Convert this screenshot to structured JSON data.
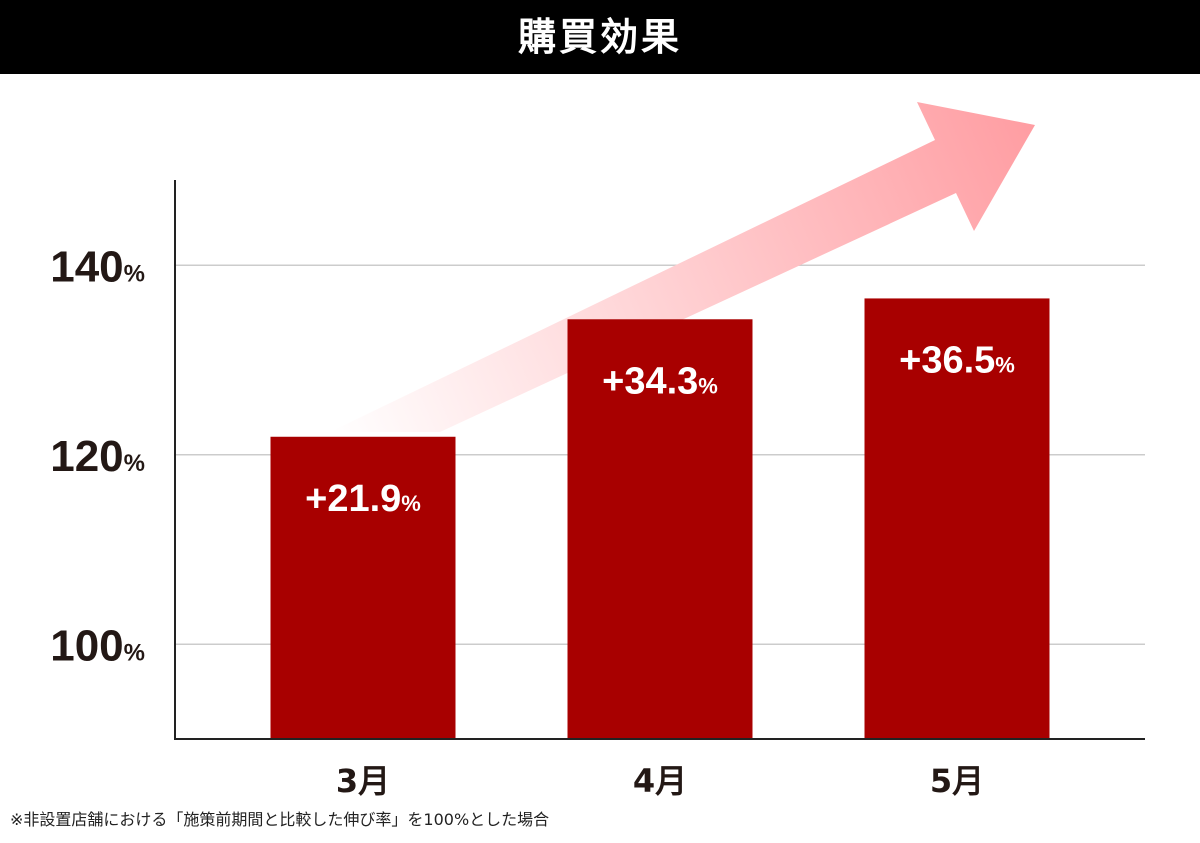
{
  "title": "購買効果",
  "footnote": "※非設置店舗における「施策前期間と比較した伸び率」を100%とした場合",
  "colors": {
    "title_bar": "#000000",
    "title_text": "#ffffff",
    "bar": "#a80000",
    "bar_label": "#ffffff",
    "axis": "#222222",
    "gridline": "#cccccc",
    "tick_label": "#231815",
    "arrow": "#ff9da2"
  },
  "chart_data": {
    "type": "bar",
    "categories": [
      "3月",
      "4月",
      "5月"
    ],
    "values": [
      121.9,
      134.3,
      136.5
    ],
    "data_labels": [
      {
        "value": "+21.9",
        "unit": "%"
      },
      {
        "value": "+34.3",
        "unit": "%"
      },
      {
        "value": "+36.5",
        "unit": "%"
      }
    ],
    "ylim": [
      90,
      149
    ],
    "yticks": [
      {
        "value": 100,
        "number": "100",
        "unit": "%"
      },
      {
        "value": 120,
        "number": "120",
        "unit": "%"
      },
      {
        "value": 140,
        "number": "140",
        "unit": "%"
      }
    ],
    "grid": true,
    "decoration": "upward-trend-arrow"
  }
}
